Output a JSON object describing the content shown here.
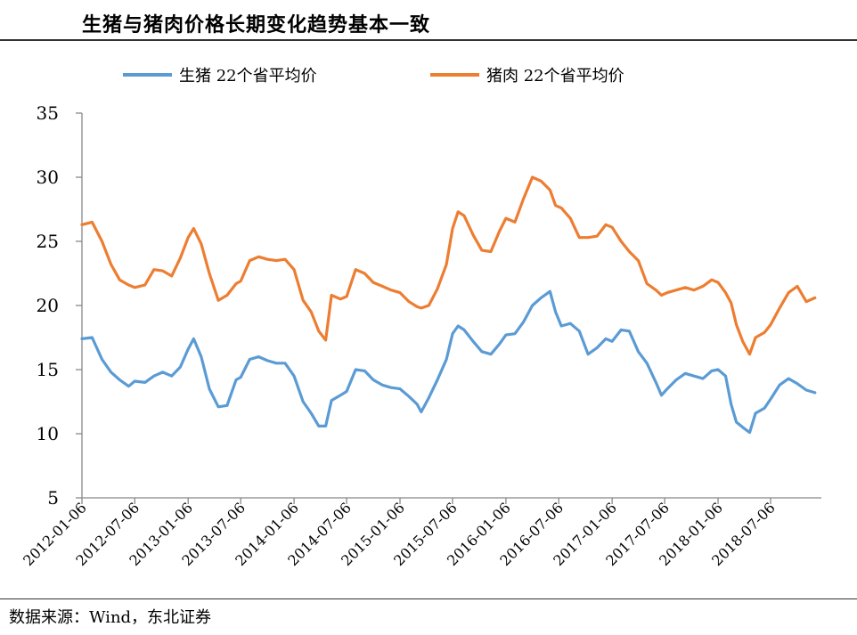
{
  "header": {
    "title": "生猪与猪肉价格长期变化趋势基本一致"
  },
  "footer": {
    "source": "数据来源：Wind，东北证券"
  },
  "chart_data": {
    "type": "line",
    "title": "生猪与猪肉价格长期变化趋势基本一致",
    "xlabel": "",
    "ylabel": "",
    "ylim": [
      5,
      35
    ],
    "y_ticks": [
      5,
      10,
      15,
      20,
      25,
      30,
      35
    ],
    "x_range": [
      "2012-01-06",
      "2018-12-28"
    ],
    "x_tick_labels": [
      "2012-01-06",
      "2012-07-06",
      "2013-01-06",
      "2013-07-06",
      "2014-01-06",
      "2014-07-06",
      "2015-01-06",
      "2015-07-06",
      "2016-01-06",
      "2016-07-06",
      "2017-01-06",
      "2017-07-06",
      "2018-01-06",
      "2018-07-06"
    ],
    "grid": false,
    "legend": "top",
    "series": [
      {
        "name": "生猪  22个省平均价",
        "color": "#5b9bd5",
        "points": [
          [
            "2012-01-06",
            17.4
          ],
          [
            "2012-02-10",
            17.5
          ],
          [
            "2012-03-15",
            15.8
          ],
          [
            "2012-04-15",
            14.8
          ],
          [
            "2012-05-15",
            14.2
          ],
          [
            "2012-06-15",
            13.7
          ],
          [
            "2012-07-06",
            14.1
          ],
          [
            "2012-08-10",
            14.0
          ],
          [
            "2012-09-10",
            14.5
          ],
          [
            "2012-10-10",
            14.8
          ],
          [
            "2012-11-10",
            14.5
          ],
          [
            "2012-12-10",
            15.2
          ],
          [
            "2013-01-06",
            16.6
          ],
          [
            "2013-01-25",
            17.4
          ],
          [
            "2013-02-20",
            16.0
          ],
          [
            "2013-03-20",
            13.5
          ],
          [
            "2013-04-20",
            12.1
          ],
          [
            "2013-05-20",
            12.2
          ],
          [
            "2013-06-20",
            14.2
          ],
          [
            "2013-07-06",
            14.4
          ],
          [
            "2013-08-06",
            15.8
          ],
          [
            "2013-09-06",
            16.0
          ],
          [
            "2013-10-06",
            15.7
          ],
          [
            "2013-11-06",
            15.5
          ],
          [
            "2013-12-06",
            15.5
          ],
          [
            "2014-01-06",
            14.5
          ],
          [
            "2014-02-06",
            12.5
          ],
          [
            "2014-03-06",
            11.6
          ],
          [
            "2014-04-01",
            10.6
          ],
          [
            "2014-04-25",
            10.6
          ],
          [
            "2014-05-15",
            12.6
          ],
          [
            "2014-06-15",
            13.0
          ],
          [
            "2014-07-06",
            13.3
          ],
          [
            "2014-08-06",
            15.0
          ],
          [
            "2014-09-06",
            14.9
          ],
          [
            "2014-10-06",
            14.2
          ],
          [
            "2014-11-06",
            13.8
          ],
          [
            "2014-12-06",
            13.6
          ],
          [
            "2015-01-06",
            13.5
          ],
          [
            "2015-02-06",
            12.9
          ],
          [
            "2015-03-06",
            12.3
          ],
          [
            "2015-03-20",
            11.7
          ],
          [
            "2015-04-15",
            12.8
          ],
          [
            "2015-05-15",
            14.2
          ],
          [
            "2015-06-15",
            15.8
          ],
          [
            "2015-07-06",
            17.8
          ],
          [
            "2015-07-25",
            18.4
          ],
          [
            "2015-08-15",
            18.1
          ],
          [
            "2015-09-15",
            17.2
          ],
          [
            "2015-10-15",
            16.4
          ],
          [
            "2015-11-15",
            16.2
          ],
          [
            "2015-12-15",
            17.0
          ],
          [
            "2016-01-06",
            17.7
          ],
          [
            "2016-02-06",
            17.8
          ],
          [
            "2016-03-06",
            18.7
          ],
          [
            "2016-04-06",
            20.0
          ],
          [
            "2016-05-06",
            20.6
          ],
          [
            "2016-06-06",
            21.1
          ],
          [
            "2016-06-25",
            19.5
          ],
          [
            "2016-07-15",
            18.4
          ],
          [
            "2016-08-15",
            18.6
          ],
          [
            "2016-09-15",
            18.0
          ],
          [
            "2016-10-15",
            16.2
          ],
          [
            "2016-11-15",
            16.7
          ],
          [
            "2016-12-15",
            17.4
          ],
          [
            "2017-01-06",
            17.2
          ],
          [
            "2017-02-06",
            18.1
          ],
          [
            "2017-03-06",
            18.0
          ],
          [
            "2017-04-06",
            16.4
          ],
          [
            "2017-05-06",
            15.5
          ],
          [
            "2017-06-06",
            14.0
          ],
          [
            "2017-06-25",
            13.0
          ],
          [
            "2017-07-15",
            13.5
          ],
          [
            "2017-08-15",
            14.2
          ],
          [
            "2017-09-15",
            14.7
          ],
          [
            "2017-10-15",
            14.5
          ],
          [
            "2017-11-15",
            14.3
          ],
          [
            "2017-12-15",
            14.9
          ],
          [
            "2018-01-06",
            15.0
          ],
          [
            "2018-02-01",
            14.5
          ],
          [
            "2018-02-20",
            12.3
          ],
          [
            "2018-03-10",
            10.9
          ],
          [
            "2018-04-01",
            10.5
          ],
          [
            "2018-04-25",
            10.1
          ],
          [
            "2018-05-15",
            11.6
          ],
          [
            "2018-06-15",
            12.0
          ],
          [
            "2018-07-06",
            12.7
          ],
          [
            "2018-08-06",
            13.8
          ],
          [
            "2018-09-06",
            14.3
          ],
          [
            "2018-10-06",
            13.9
          ],
          [
            "2018-11-06",
            13.4
          ],
          [
            "2018-12-06",
            13.2
          ]
        ]
      },
      {
        "name": "猪肉  22个省平均价",
        "color": "#ed7d31",
        "points": [
          [
            "2012-01-06",
            26.3
          ],
          [
            "2012-02-10",
            26.5
          ],
          [
            "2012-03-15",
            25.0
          ],
          [
            "2012-04-15",
            23.2
          ],
          [
            "2012-05-15",
            22.0
          ],
          [
            "2012-06-15",
            21.6
          ],
          [
            "2012-07-06",
            21.4
          ],
          [
            "2012-08-10",
            21.6
          ],
          [
            "2012-09-10",
            22.8
          ],
          [
            "2012-10-10",
            22.7
          ],
          [
            "2012-11-10",
            22.3
          ],
          [
            "2012-12-10",
            23.7
          ],
          [
            "2013-01-06",
            25.3
          ],
          [
            "2013-01-25",
            26.0
          ],
          [
            "2013-02-20",
            24.8
          ],
          [
            "2013-03-20",
            22.5
          ],
          [
            "2013-04-20",
            20.4
          ],
          [
            "2013-05-20",
            20.8
          ],
          [
            "2013-06-20",
            21.7
          ],
          [
            "2013-07-06",
            21.9
          ],
          [
            "2013-08-06",
            23.5
          ],
          [
            "2013-09-06",
            23.8
          ],
          [
            "2013-10-06",
            23.6
          ],
          [
            "2013-11-06",
            23.5
          ],
          [
            "2013-12-06",
            23.6
          ],
          [
            "2014-01-06",
            22.8
          ],
          [
            "2014-02-06",
            20.4
          ],
          [
            "2014-03-06",
            19.5
          ],
          [
            "2014-04-01",
            18.0
          ],
          [
            "2014-04-25",
            17.3
          ],
          [
            "2014-05-15",
            20.8
          ],
          [
            "2014-06-15",
            20.5
          ],
          [
            "2014-07-06",
            20.7
          ],
          [
            "2014-08-06",
            22.8
          ],
          [
            "2014-09-06",
            22.5
          ],
          [
            "2014-10-06",
            21.8
          ],
          [
            "2014-11-06",
            21.5
          ],
          [
            "2014-12-06",
            21.2
          ],
          [
            "2015-01-06",
            21.0
          ],
          [
            "2015-02-06",
            20.3
          ],
          [
            "2015-03-06",
            19.9
          ],
          [
            "2015-03-20",
            19.8
          ],
          [
            "2015-04-15",
            20.0
          ],
          [
            "2015-05-15",
            21.3
          ],
          [
            "2015-06-15",
            23.2
          ],
          [
            "2015-07-06",
            26.0
          ],
          [
            "2015-07-25",
            27.3
          ],
          [
            "2015-08-15",
            27.0
          ],
          [
            "2015-09-15",
            25.5
          ],
          [
            "2015-10-15",
            24.3
          ],
          [
            "2015-11-15",
            24.2
          ],
          [
            "2015-12-15",
            25.8
          ],
          [
            "2016-01-06",
            26.8
          ],
          [
            "2016-02-06",
            26.5
          ],
          [
            "2016-03-06",
            28.3
          ],
          [
            "2016-04-06",
            30.0
          ],
          [
            "2016-05-06",
            29.7
          ],
          [
            "2016-06-06",
            29.0
          ],
          [
            "2016-06-25",
            27.8
          ],
          [
            "2016-07-15",
            27.6
          ],
          [
            "2016-08-15",
            26.8
          ],
          [
            "2016-09-15",
            25.3
          ],
          [
            "2016-10-15",
            25.3
          ],
          [
            "2016-11-15",
            25.4
          ],
          [
            "2016-12-15",
            26.3
          ],
          [
            "2017-01-06",
            26.1
          ],
          [
            "2017-02-06",
            25.0
          ],
          [
            "2017-03-06",
            24.2
          ],
          [
            "2017-04-06",
            23.5
          ],
          [
            "2017-05-06",
            21.7
          ],
          [
            "2017-06-06",
            21.2
          ],
          [
            "2017-06-25",
            20.8
          ],
          [
            "2017-07-15",
            21.0
          ],
          [
            "2017-08-15",
            21.2
          ],
          [
            "2017-09-15",
            21.4
          ],
          [
            "2017-10-15",
            21.2
          ],
          [
            "2017-11-15",
            21.5
          ],
          [
            "2017-12-15",
            22.0
          ],
          [
            "2018-01-06",
            21.8
          ],
          [
            "2018-02-01",
            21.0
          ],
          [
            "2018-02-20",
            20.2
          ],
          [
            "2018-03-10",
            18.5
          ],
          [
            "2018-04-01",
            17.2
          ],
          [
            "2018-04-25",
            16.2
          ],
          [
            "2018-05-15",
            17.5
          ],
          [
            "2018-06-15",
            17.9
          ],
          [
            "2018-07-06",
            18.5
          ],
          [
            "2018-08-06",
            19.8
          ],
          [
            "2018-09-06",
            21.0
          ],
          [
            "2018-10-06",
            21.5
          ],
          [
            "2018-11-06",
            20.3
          ],
          [
            "2018-12-06",
            20.6
          ]
        ]
      }
    ]
  }
}
